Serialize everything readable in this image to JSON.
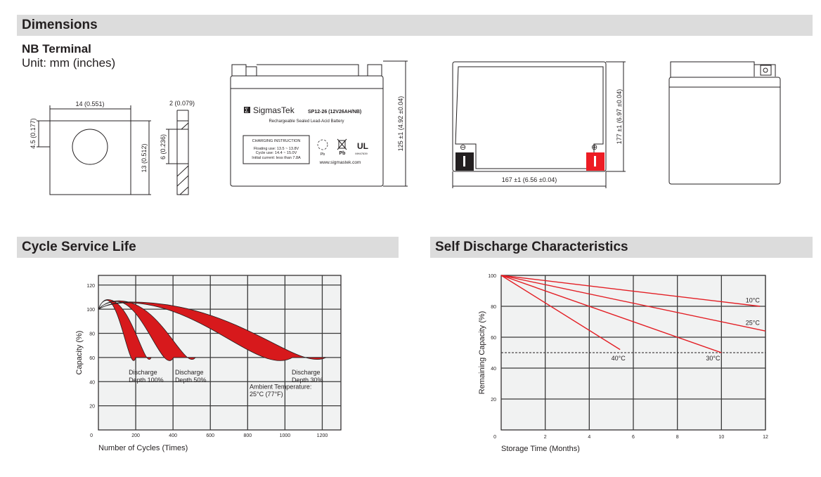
{
  "sections": {
    "dimensions": "Dimensions",
    "cycle_life": "Cycle Service Life",
    "self_discharge": "Self Discharge Characteristics"
  },
  "terminal": {
    "title": "NB Terminal",
    "unit": "Unit: mm (inches)",
    "width": "14 (0.551)",
    "height": "13 (0.512)",
    "offset": "4.5 (0.177)",
    "thickness": "2 (0.079)",
    "hole": "6 (0.236)"
  },
  "battery": {
    "brand": "SigmasTek",
    "model": "SP12-26 (12V26AH/NB)",
    "subtitle": "Rechargeable Sealed Lead-Acid Battery",
    "charging_title": "CHARGING INSTRUCTION",
    "charging_lines": [
      "Floating use: 13.5 ~ 13.8V",
      "Cycle use: 14.4 ~ 15.0V",
      "Initial current: less than 7.8A"
    ],
    "pb1": "Pb",
    "pb2": "Pb",
    "ul_code": "MH47639",
    "website": "www.sigmastek.com",
    "height_dim": "125 ±1 (4.92 ±0.04)",
    "length_dim": "177 ±1 (6.97 ±0.04)",
    "width_dim": "167 ±1 (6.56 ±0.04)",
    "negative_symbol": "⊖",
    "positive_symbol": "⊕",
    "negative_color": "#231f20",
    "positive_color": "#ed1c24"
  },
  "chart_data": [
    {
      "type": "area",
      "title": "Cycle Service Life",
      "xlabel": "Number of Cycles (Times)",
      "ylabel": "Capacity (%)",
      "xlim": [
        0,
        1300
      ],
      "ylim": [
        0,
        128
      ],
      "xticks": [
        "200",
        "400",
        "600",
        "800",
        "1000",
        "1200"
      ],
      "yticks": [
        "20",
        "40",
        "60",
        "80",
        "100",
        "120"
      ],
      "origin_label": "0",
      "grid": true,
      "band_color": "#d7191c",
      "series": [
        {
          "name": "Discharge Depth 100%",
          "label": [
            "Discharge",
            "Depth 100%"
          ],
          "start": 100,
          "peak_x": 50,
          "peak_y": 108,
          "end_inner": 200,
          "end_outer": 283,
          "end_y": 60
        },
        {
          "name": "Discharge Depth 50%",
          "label": [
            "Discharge",
            "Depth 50%"
          ],
          "start": 100,
          "peak_x": 110,
          "peak_y": 107,
          "end_inner": 403,
          "end_outer": 520,
          "end_y": 60
        },
        {
          "name": "Discharge Depth 30%",
          "label": [
            "Discharge",
            "Depth 30%"
          ],
          "start": 100,
          "peak_x": 170,
          "peak_y": 106,
          "end_inner": 1040,
          "end_outer": 1220,
          "end_y": 60
        }
      ],
      "annotation": [
        "Ambient Temperature:",
        "25°C (77°F)"
      ]
    },
    {
      "type": "line",
      "title": "Self Discharge Characteristics",
      "xlabel": "Storage Time (Months)",
      "ylabel": "Remaining Capacity (%)",
      "xlim": [
        0,
        12
      ],
      "ylim": [
        0,
        100
      ],
      "xticks": [
        "2",
        "4",
        "6",
        "8",
        "10",
        "12"
      ],
      "yticks": [
        "20",
        "40",
        "60",
        "80",
        "100"
      ],
      "origin_label": "0",
      "grid": true,
      "reference_line": 50,
      "line_color": "#e31e24",
      "series": [
        {
          "name": "10°C",
          "x": [
            0,
            11.75
          ],
          "y": [
            100,
            80
          ]
        },
        {
          "name": "25°C",
          "x": [
            0,
            12
          ],
          "y": [
            100,
            64
          ]
        },
        {
          "name": "30°C",
          "x": [
            0,
            10
          ],
          "y": [
            100,
            50
          ]
        },
        {
          "name": "40°C",
          "x": [
            0,
            5.4
          ],
          "y": [
            100,
            52
          ]
        }
      ]
    }
  ]
}
